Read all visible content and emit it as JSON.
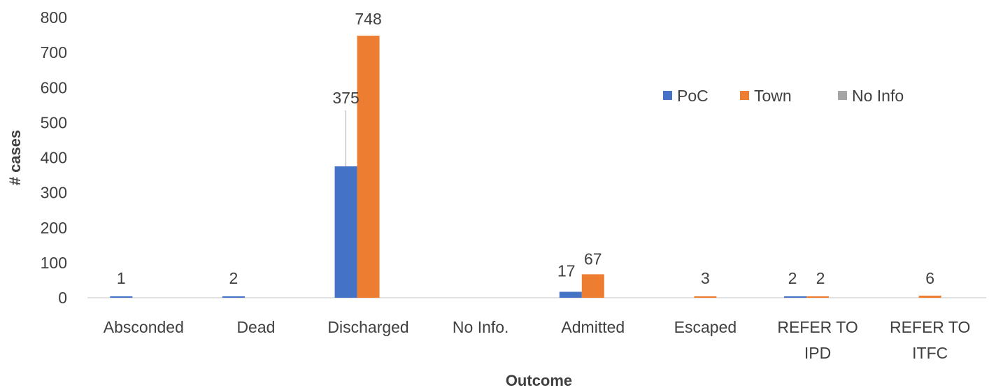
{
  "chart_data": {
    "type": "bar",
    "title": "",
    "xlabel": "Outcome",
    "ylabel": "# cases",
    "ylim": [
      0,
      800
    ],
    "yticks": [
      0,
      100,
      200,
      300,
      400,
      500,
      600,
      700,
      800
    ],
    "grid": false,
    "legend_position": "top-right",
    "categories": [
      [
        "Absconded"
      ],
      [
        "Dead"
      ],
      [
        "Discharged"
      ],
      [
        "No Info."
      ],
      [
        "Admitted"
      ],
      [
        "Escaped"
      ],
      [
        "REFER TO",
        "IPD"
      ],
      [
        "REFER TO",
        "ITFC"
      ]
    ],
    "series": [
      {
        "name": "PoC",
        "color": "#4472C4",
        "values": [
          1,
          2,
          375,
          0,
          17,
          0,
          2,
          0
        ],
        "labels": [
          "1",
          "2",
          "375",
          "",
          "17",
          "",
          "2",
          ""
        ]
      },
      {
        "name": "Town",
        "color": "#ED7D31",
        "values": [
          0,
          0,
          748,
          0,
          67,
          3,
          2,
          6
        ],
        "labels": [
          "",
          "",
          "748",
          "",
          "67",
          "3",
          "2",
          "6"
        ]
      },
      {
        "name": "No Info",
        "color": "#A5A5A5",
        "values": [
          0,
          0,
          0,
          0,
          0,
          0,
          0,
          0
        ],
        "labels": [
          "",
          "",
          "",
          "",
          "",
          "",
          "",
          ""
        ]
      }
    ]
  }
}
